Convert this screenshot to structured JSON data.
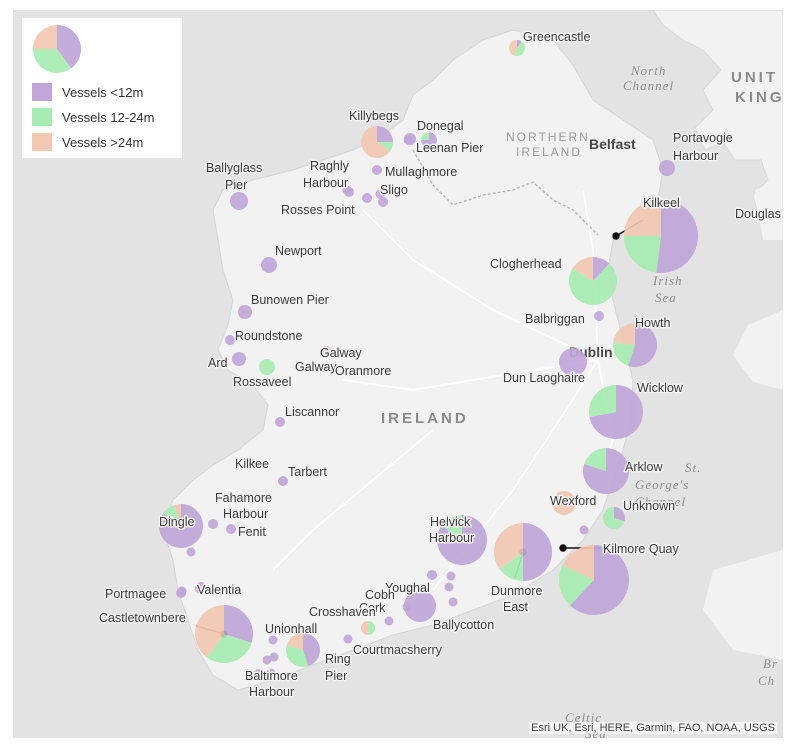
{
  "legend": {
    "items": [
      {
        "label": "Vessels <12m",
        "color": "#c0a6d9"
      },
      {
        "label": "Vessels 12-24m",
        "color": "#a9ecb3"
      },
      {
        "label": "Vessels >24m",
        "color": "#f2c8b3"
      }
    ]
  },
  "labels": {
    "greencastle": "Greencastle",
    "north_channel_1": "North",
    "north_channel_2": "Channel",
    "united_kingdom_1": "UNIT",
    "united_kingdom_2": "KING",
    "northern_ireland_1": "NORTHERN",
    "northern_ireland_2": "IRELAND",
    "belfast": "Belfast",
    "portavogie_1": "Portavogie",
    "portavogie_2": "Harbour",
    "killybegs": "Killybegs",
    "donegal": "Donegal",
    "leenan_pier": "Leenan Pier",
    "mullaghmore": "Mullaghmore",
    "raghly_1": "Raghly",
    "raghly_2": "Harbour",
    "sligo": "Sligo",
    "rosses_point": "Rosses Point",
    "ballyglass_1": "Ballyglass",
    "ballyglass_2": "Pier",
    "kilkeel": "Kilkeel",
    "douglas": "Douglas",
    "irish_sea_1": "Irish",
    "irish_sea_2": "Sea",
    "newport": "Newport",
    "clogherhead": "Clogherhead",
    "bunowen_pier": "Bunowen Pier",
    "balbriggan": "Balbriggan",
    "roundstone": "Roundstone",
    "howth": "Howth",
    "dublin": "Dublin",
    "galway_1": "Galway",
    "galway_2": "Galway",
    "oranmore": "Oranmore",
    "ard": "Ard",
    "rossaveel": "Rossaveel",
    "dun_laoghaire": "Dun Laoghaire",
    "wicklow": "Wicklow",
    "liscannor": "Liscannor",
    "ireland": "IRELAND",
    "kilkee": "Kilkee",
    "tarbert": "Tarbert",
    "arklow": "Arklow",
    "st_georges_1": "St.",
    "st_georges_2": "George's",
    "st_georges_3": "Channel",
    "fahamore_1": "Fahamore",
    "fahamore_2": "Harbour",
    "fenit": "Fenit",
    "dingle": "Dingle",
    "wexford": "Wexford",
    "unknown": "Unknown",
    "helvick_1": "Helvick",
    "helvick_2": "Harbour",
    "kilmore_quay": "Kilmore Quay",
    "youghal": "Youghal",
    "cobh": "Cobh",
    "cork": "Cork",
    "dunmore_1": "Dunmore",
    "dunmore_2": "East",
    "portmagee": "Portmagee",
    "valentia": "Valentia",
    "castletownbere": "Castletownbere",
    "crosshaven": "Crosshaven",
    "ballycotton": "Ballycotton",
    "unionhall": "Unionhall",
    "courtmacsherry": "Courtmacsherry",
    "ring_1": "Ring",
    "ring_2": "Pier",
    "baltimore_1": "Baltimore",
    "baltimore_2": "Harbour",
    "bristol_1": "Br",
    "bristol_2": "Ch",
    "celtic_1": "Celtic",
    "celtic_2": "Sea"
  },
  "attribution": "Esri UK, Esri, HERE, Garmin, FAO, NOAA, USGS",
  "ports": [
    {
      "name": "Greencastle",
      "fractions": [
        0.1,
        0.45,
        0.45
      ]
    },
    {
      "name": "Portavogie Harbour",
      "fractions": [
        1,
        0,
        0
      ]
    },
    {
      "name": "Killybegs",
      "fractions": [
        0.25,
        0.1,
        0.65
      ]
    },
    {
      "name": "Donegal",
      "fractions": [
        1,
        0,
        0
      ]
    },
    {
      "name": "Leenan Pier",
      "fractions": [
        0.75,
        0.25,
        0
      ]
    },
    {
      "name": "Mullaghmore",
      "fractions": [
        1,
        0,
        0
      ]
    },
    {
      "name": "Raghly Harbour",
      "fractions": [
        1,
        0,
        0
      ]
    },
    {
      "name": "Sligo",
      "fractions": [
        1,
        0,
        0
      ]
    },
    {
      "name": "Rosses Point",
      "fractions": [
        1,
        0,
        0
      ]
    },
    {
      "name": "Ballyglass Pier",
      "fractions": [
        1,
        0,
        0
      ]
    },
    {
      "name": "Kilkeel",
      "fractions": [
        0.52,
        0.23,
        0.25
      ]
    },
    {
      "name": "Newport",
      "fractions": [
        1,
        0,
        0
      ]
    },
    {
      "name": "Clogherhead",
      "fractions": [
        0.12,
        0.72,
        0.16
      ]
    },
    {
      "name": "Bunowen Pier",
      "fractions": [
        1,
        0,
        0
      ]
    },
    {
      "name": "Balbriggan",
      "fractions": [
        1,
        0,
        0
      ]
    },
    {
      "name": "Roundstone",
      "fractions": [
        1,
        0,
        0
      ]
    },
    {
      "name": "Howth",
      "fractions": [
        0.55,
        0.22,
        0.23
      ]
    },
    {
      "name": "Dun Laoghaire",
      "fractions": [
        1,
        0,
        0
      ]
    },
    {
      "name": "Galway",
      "fractions": [
        1,
        0,
        0
      ]
    },
    {
      "name": "Ard",
      "fractions": [
        1,
        0,
        0
      ]
    },
    {
      "name": "Rossaveel",
      "fractions": [
        0,
        1,
        0
      ]
    },
    {
      "name": "Wicklow",
      "fractions": [
        0.72,
        0.28,
        0
      ]
    },
    {
      "name": "Liscannor",
      "fractions": [
        1,
        0,
        0
      ]
    },
    {
      "name": "Tarbert",
      "fractions": [
        1,
        0,
        0
      ]
    },
    {
      "name": "Arklow",
      "fractions": [
        0.8,
        0.2,
        0
      ]
    },
    {
      "name": "Unknown",
      "fractions": [
        0.3,
        0.7,
        0
      ]
    },
    {
      "name": "Wexford",
      "fractions": [
        0,
        0,
        1
      ]
    },
    {
      "name": "Fahamore Harbour",
      "fractions": [
        1,
        0,
        0
      ]
    },
    {
      "name": "Fenit",
      "fractions": [
        1,
        0,
        0
      ]
    },
    {
      "name": "Dingle",
      "fractions": [
        0.85,
        0.1,
        0.05
      ]
    },
    {
      "name": "Helvick Harbour",
      "fractions": [
        0.85,
        0.15,
        0
      ]
    },
    {
      "name": "Dunmore East",
      "fractions": [
        0.5,
        0.15,
        0.35
      ]
    },
    {
      "name": "Kilmore Quay",
      "fractions": [
        0.62,
        0.2,
        0.18
      ]
    },
    {
      "name": "Youghal",
      "fractions": [
        1,
        0,
        0
      ]
    },
    {
      "name": "Ballycotton",
      "fractions": [
        1,
        0,
        0
      ]
    },
    {
      "name": "Crosshaven",
      "fractions": [
        0,
        0.5,
        0.5
      ]
    },
    {
      "name": "Castletownbere",
      "fractions": [
        0.3,
        0.3,
        0.4
      ]
    },
    {
      "name": "Unionhall",
      "fractions": [
        0.45,
        0.35,
        0.2
      ]
    },
    {
      "name": "Valentia",
      "fractions": [
        1,
        0,
        0
      ]
    },
    {
      "name": "Portmagee",
      "fractions": [
        1,
        0,
        0
      ]
    },
    {
      "name": "Baltimore Harbour",
      "fractions": [
        1,
        0,
        0
      ]
    },
    {
      "name": "Legend sample",
      "fractions": [
        0.4,
        0.35,
        0.25
      ]
    }
  ]
}
